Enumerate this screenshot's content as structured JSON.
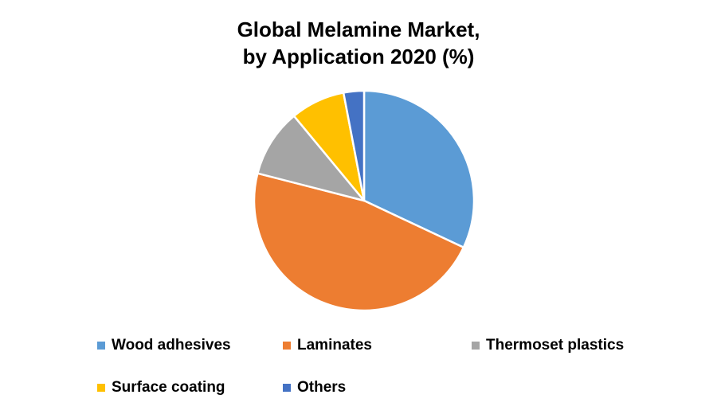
{
  "chart_data": {
    "type": "pie",
    "title": "Global Melamine Market, by Application 2020 (%)",
    "title_lines": [
      "Global Melamine Market,",
      "by Application 2020 (%)"
    ],
    "unit": "%",
    "categories": [
      "Wood adhesives",
      "Laminates",
      "Thermoset plastics",
      "Surface coating",
      "Others"
    ],
    "values": [
      32,
      47,
      10,
      8,
      3
    ],
    "colors": [
      "#5B9BD5",
      "#ED7D31",
      "#A5A5A5",
      "#FFC000",
      "#4472C4"
    ],
    "legend_position": "bottom",
    "start_angle": "12 o'clock",
    "direction": "clockwise"
  }
}
